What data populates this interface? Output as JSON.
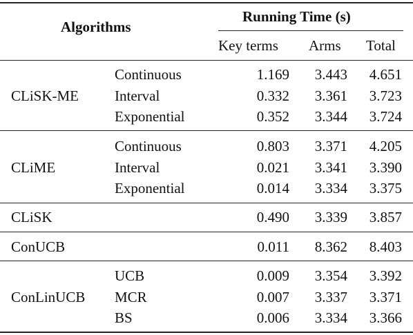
{
  "header": {
    "algorithms": "Algorithms",
    "running_time": "Running Time (s)",
    "columns": [
      "Key terms",
      "Arms",
      "Total"
    ]
  },
  "groups": [
    {
      "name": "CLiSK-ME",
      "rows": [
        {
          "variant": "Continuous",
          "key_terms": "1.169",
          "arms": "3.443",
          "total": "4.651"
        },
        {
          "variant": "Interval",
          "key_terms": "0.332",
          "arms": "3.361",
          "total": "3.723"
        },
        {
          "variant": "Exponential",
          "key_terms": "0.352",
          "arms": "3.344",
          "total": "3.724"
        }
      ]
    },
    {
      "name": "CLiME",
      "rows": [
        {
          "variant": "Continuous",
          "key_terms": "0.803",
          "arms": "3.371",
          "total": "4.205"
        },
        {
          "variant": "Interval",
          "key_terms": "0.021",
          "arms": "3.341",
          "total": "3.390"
        },
        {
          "variant": "Exponential",
          "key_terms": "0.014",
          "arms": "3.334",
          "total": "3.375"
        }
      ]
    },
    {
      "name": "CLiSK",
      "rows": [
        {
          "variant": "",
          "key_terms": "0.490",
          "arms": "3.339",
          "total": "3.857"
        }
      ]
    },
    {
      "name": "ConUCB",
      "rows": [
        {
          "variant": "",
          "key_terms": "0.011",
          "arms": "8.362",
          "total": "8.403"
        }
      ]
    },
    {
      "name": "ConLinUCB",
      "rows": [
        {
          "variant": "UCB",
          "key_terms": "0.009",
          "arms": "3.354",
          "total": "3.392"
        },
        {
          "variant": "MCR",
          "key_terms": "0.007",
          "arms": "3.337",
          "total": "3.371"
        },
        {
          "variant": "BS",
          "key_terms": "0.006",
          "arms": "3.334",
          "total": "3.366"
        }
      ]
    }
  ]
}
